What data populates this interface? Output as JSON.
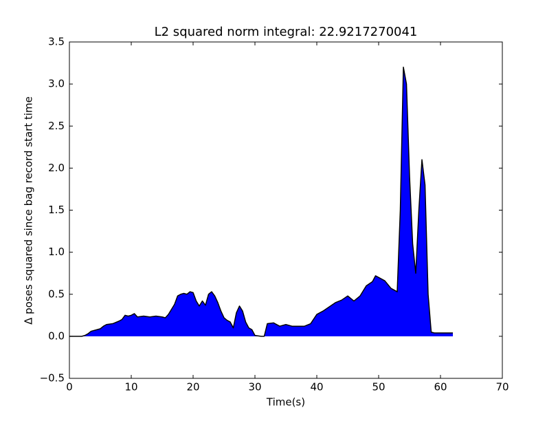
{
  "chart_data": {
    "type": "area",
    "title": "L2 squared norm integral: 22.9217270041",
    "x_label": "Time(s)",
    "y_label": "Δ poses squared since bag record start time",
    "xlim": [
      0,
      70
    ],
    "xticks": [
      0,
      10,
      20,
      30,
      40,
      50,
      60,
      70
    ],
    "ylim": [
      -0.5,
      3.5
    ],
    "yticks": [
      {
        "value": -0.5,
        "label": "−0.5"
      },
      {
        "value": 0,
        "label": "0.0"
      },
      {
        "value": 0.5,
        "label": "0.5"
      },
      {
        "value": 1,
        "label": "1.0"
      },
      {
        "value": 1.5,
        "label": "1.5"
      },
      {
        "value": 2,
        "label": "2.0"
      },
      {
        "value": 2.5,
        "label": "2.5"
      },
      {
        "value": 3,
        "label": "3.0"
      },
      {
        "value": 3.5,
        "label": "3.5"
      }
    ],
    "grid": false,
    "x": [
      0,
      1,
      2,
      2.5,
      3,
      3.5,
      4,
      4.5,
      5,
      5.5,
      6,
      7,
      8,
      8.5,
      9,
      9.5,
      10,
      10.5,
      11,
      12,
      13,
      14,
      15,
      15.5,
      16,
      16.5,
      17,
      17.5,
      18,
      18.5,
      19,
      19.5,
      20,
      20.5,
      21,
      21.5,
      22,
      22.5,
      23,
      23.5,
      24,
      24.5,
      25,
      25.5,
      26,
      26.5,
      27,
      27.5,
      28,
      28.5,
      29,
      29.5,
      30,
      31,
      31.5,
      32,
      33,
      34,
      35,
      36,
      37,
      38,
      39,
      40,
      41,
      42,
      43,
      44,
      45,
      46,
      47,
      48,
      49,
      49.5,
      50,
      51,
      52,
      53,
      53.5,
      54,
      54.5,
      55,
      55.5,
      56,
      56.5,
      57,
      57.5,
      58,
      58.5,
      59,
      62
    ],
    "series": [
      {
        "color": "#0000ff",
        "line_color": "#000000",
        "values": [
          0,
          0,
          0,
          0.01,
          0.03,
          0.06,
          0.07,
          0.08,
          0.09,
          0.12,
          0.14,
          0.15,
          0.18,
          0.2,
          0.25,
          0.24,
          0.25,
          0.27,
          0.23,
          0.24,
          0.23,
          0.24,
          0.23,
          0.22,
          0.26,
          0.32,
          0.38,
          0.48,
          0.5,
          0.51,
          0.5,
          0.53,
          0.52,
          0.42,
          0.36,
          0.42,
          0.37,
          0.5,
          0.53,
          0.48,
          0.4,
          0.3,
          0.22,
          0.19,
          0.17,
          0.1,
          0.28,
          0.36,
          0.3,
          0.17,
          0.1,
          0.08,
          0.01,
          0,
          0,
          0.15,
          0.16,
          0.12,
          0.14,
          0.12,
          0.12,
          0.12,
          0.15,
          0.26,
          0.3,
          0.35,
          0.4,
          0.43,
          0.48,
          0.42,
          0.48,
          0.6,
          0.65,
          0.72,
          0.7,
          0.66,
          0.57,
          0.53,
          1.5,
          3.2,
          3.0,
          1.9,
          1.1,
          0.75,
          1.5,
          2.1,
          1.8,
          0.5,
          0.05,
          0.04,
          0.04
        ]
      }
    ]
  }
}
